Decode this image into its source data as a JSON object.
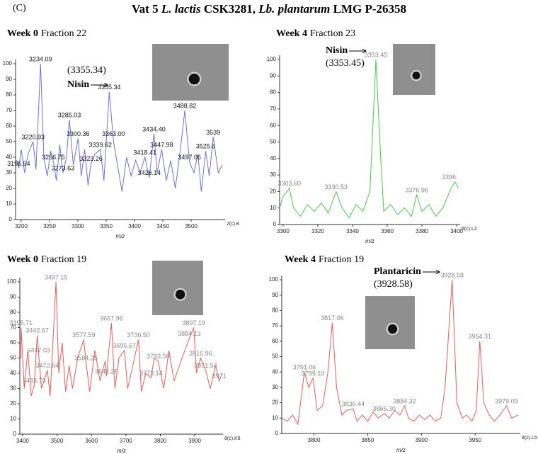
{
  "panel_label": "(C)",
  "title_parts": [
    "Vat 5 ",
    "L. lactis",
    " CSK3281, ",
    "Lb. plantarum",
    "  LMG P-26358"
  ],
  "chart_data": [
    {
      "type": "line",
      "title": "Week 0",
      "subtitle": "Fraction 22",
      "xlabel": "m/z",
      "corner_label": "2(c).K",
      "color": "#7070e0",
      "annotation_color": "#111",
      "xlim": [
        3190,
        3560
      ],
      "xticks": [
        3200,
        3250,
        3300,
        3350,
        3400,
        3450,
        3500
      ],
      "ylim": [
        0,
        100
      ],
      "yticks": [
        0,
        10,
        20,
        30,
        40,
        50,
        60,
        70,
        80,
        90,
        100
      ],
      "x": [
        3192,
        3195.54,
        3200,
        3206,
        3212,
        3220.93,
        3226,
        3234.09,
        3240,
        3246,
        3252,
        3256.75,
        3262,
        3268,
        3273.63,
        3280,
        3285.03,
        3292,
        3300.36,
        3306,
        3312,
        3318,
        3323.26,
        3330,
        3339.62,
        3346,
        3355.34,
        3363.0,
        3370,
        3378,
        3386,
        3394,
        3402,
        3410,
        3418.41,
        3426.14,
        3434.4,
        3440,
        3447.98,
        3456,
        3464,
        3472,
        3480,
        3488.82,
        3497.06,
        3505,
        3512,
        3518,
        3525.6,
        3532,
        3539,
        3548,
        3555
      ],
      "values": [
        38,
        33,
        45,
        30,
        42,
        50,
        32,
        100,
        40,
        28,
        44,
        37,
        25,
        48,
        30,
        40,
        64,
        35,
        52,
        28,
        45,
        22,
        36,
        42,
        45,
        25,
        82,
        50,
        35,
        18,
        40,
        28,
        38,
        30,
        40,
        27,
        55,
        30,
        45,
        25,
        38,
        20,
        42,
        70,
        37,
        30,
        42,
        18,
        44,
        28,
        53,
        30,
        35
      ],
      "annotations": [
        {
          "x": 3195.54,
          "y": 33,
          "label": "3195.54"
        },
        {
          "x": 3220.93,
          "y": 50,
          "label": "3220.93"
        },
        {
          "x": 3234.09,
          "y": 100,
          "label": "3234.09"
        },
        {
          "x": 3256.75,
          "y": 37,
          "label": "3256.75"
        },
        {
          "x": 3273.63,
          "y": 30,
          "label": "3273.63"
        },
        {
          "x": 3285.03,
          "y": 64,
          "label": "3285.03"
        },
        {
          "x": 3300.36,
          "y": 52,
          "label": "3300.36"
        },
        {
          "x": 3323.26,
          "y": 36,
          "label": "3323.26"
        },
        {
          "x": 3339.62,
          "y": 45,
          "label": "3339.62"
        },
        {
          "x": 3355.34,
          "y": 82,
          "label": "3355.34"
        },
        {
          "x": 3363.0,
          "y": 52,
          "label": "3363.00"
        },
        {
          "x": 3418.41,
          "y": 40,
          "label": "3418.41"
        },
        {
          "x": 3426.14,
          "y": 27,
          "label": "3426.14"
        },
        {
          "x": 3434.4,
          "y": 55,
          "label": "3434.40"
        },
        {
          "x": 3447.98,
          "y": 45,
          "label": "3447.98"
        },
        {
          "x": 3488.82,
          "y": 70,
          "label": "3488.82"
        },
        {
          "x": 3497.06,
          "y": 37,
          "label": "3497.06"
        },
        {
          "x": 3525.6,
          "y": 44,
          "label": "3525.6"
        },
        {
          "x": 3539,
          "y": 53,
          "label": "3539"
        }
      ],
      "callout": {
        "name": "Nisin",
        "mass": "(3355.34)"
      }
    },
    {
      "type": "line",
      "title": "Week 4",
      "subtitle": "Fraction 23",
      "xlabel": "m/z",
      "corner_label": "6(c).L2",
      "color": "#44cc44",
      "annotation_color": "#888",
      "xlim": [
        3298,
        3402
      ],
      "xticks": [
        3300,
        3320,
        3340,
        3360,
        3380,
        3400
      ],
      "ylim": [
        0,
        100
      ],
      "yticks": [
        0,
        10,
        20,
        30,
        40,
        50,
        60,
        70,
        80,
        90,
        100
      ],
      "x": [
        3298,
        3300,
        3303.6,
        3306,
        3310,
        3314,
        3318,
        3322,
        3326,
        3330.53,
        3334,
        3338,
        3342,
        3346,
        3350,
        3353.45,
        3356,
        3358,
        3362,
        3366,
        3370,
        3374,
        3376.96,
        3380,
        3384,
        3388,
        3392,
        3396,
        3399,
        3401
      ],
      "values": [
        10,
        17,
        22,
        10,
        5,
        12,
        8,
        13,
        7,
        20,
        10,
        4,
        12,
        8,
        20,
        100,
        45,
        8,
        12,
        6,
        10,
        5,
        18,
        8,
        12,
        5,
        10,
        20,
        26,
        22
      ],
      "annotations": [
        {
          "x": 3303.6,
          "y": 22,
          "label": "3303.60"
        },
        {
          "x": 3330.53,
          "y": 20,
          "label": "3330.53"
        },
        {
          "x": 3353.45,
          "y": 100,
          "label": "3353.45"
        },
        {
          "x": 3376.96,
          "y": 18,
          "label": "3376.96"
        },
        {
          "x": 3396,
          "y": 26,
          "label": "3396."
        }
      ],
      "callout": {
        "name": "Nisin",
        "mass": "(3353.45)"
      }
    },
    {
      "type": "line",
      "title": "Week 0",
      "subtitle": "Fraction 19",
      "xlabel": "m/z",
      "corner_label": "8(c).K6",
      "color": "#ee5a5a",
      "annotation_color": "#888",
      "xlim": [
        3392,
        3982
      ],
      "xticks": [
        3400,
        3500,
        3600,
        3700,
        3800,
        3900
      ],
      "ylim": [
        0,
        100
      ],
      "yticks": [
        0,
        10,
        20,
        30,
        40,
        50,
        60,
        70,
        80,
        90,
        100
      ],
      "x": [
        3395,
        3395.71,
        3405,
        3415,
        3425,
        3433.73,
        3442.67,
        3447.03,
        3455,
        3472.04,
        3480,
        3497.15,
        3505,
        3515,
        3525,
        3535,
        3545,
        3560,
        3577.59,
        3584.25,
        3595,
        3610,
        3625,
        3640,
        3643.26,
        3657.96,
        3668,
        3680,
        3695.67,
        3705,
        3720,
        3736.5,
        3745,
        3758,
        3773.14,
        3782,
        3793.56,
        3810,
        3825,
        3840,
        3860,
        3884.13,
        3897.19,
        3905,
        3916.96,
        3931.54,
        3945,
        3960,
        3971,
        3980
      ],
      "values": [
        50,
        70,
        30,
        55,
        25,
        32,
        65,
        52,
        30,
        42,
        25,
        100,
        40,
        60,
        28,
        45,
        30,
        50,
        62,
        47,
        28,
        55,
        35,
        48,
        38,
        73,
        30,
        50,
        55,
        30,
        45,
        62,
        28,
        40,
        37,
        50,
        48,
        30,
        55,
        35,
        48,
        63,
        70,
        40,
        50,
        42,
        30,
        45,
        35,
        40
      ],
      "annotations": [
        {
          "x": 3395.71,
          "y": 70,
          "label": "3395.71"
        },
        {
          "x": 3433.73,
          "y": 32,
          "label": "3433.73"
        },
        {
          "x": 3442.67,
          "y": 65,
          "label": "3442.67"
        },
        {
          "x": 3447.03,
          "y": 52,
          "label": "3447.03"
        },
        {
          "x": 3472.04,
          "y": 42,
          "label": "3472.04"
        },
        {
          "x": 3497.15,
          "y": 100,
          "label": "3497.15"
        },
        {
          "x": 3577.59,
          "y": 62,
          "label": "3577.59"
        },
        {
          "x": 3584.25,
          "y": 47,
          "label": "3584.25"
        },
        {
          "x": 3643.26,
          "y": 38,
          "label": "3643.26"
        },
        {
          "x": 3657.96,
          "y": 73,
          "label": "3657.96"
        },
        {
          "x": 3695.67,
          "y": 55,
          "label": "3695.67"
        },
        {
          "x": 3736.5,
          "y": 62,
          "label": "3736.50"
        },
        {
          "x": 3773.14,
          "y": 37,
          "label": "3773.14"
        },
        {
          "x": 3793.56,
          "y": 48,
          "label": "3793.56"
        },
        {
          "x": 3884.13,
          "y": 63,
          "label": "3884.13"
        },
        {
          "x": 3897.19,
          "y": 70,
          "label": "3897.19"
        },
        {
          "x": 3916.96,
          "y": 50,
          "label": "3916.96"
        },
        {
          "x": 3931.54,
          "y": 42,
          "label": "3931.54"
        },
        {
          "x": 3971,
          "y": 35,
          "label": "3971"
        }
      ]
    },
    {
      "type": "line",
      "title": "Week 4",
      "subtitle": "Fraction 19",
      "xlabel": "m/z",
      "corner_label": "8(c).L5",
      "color": "#ee5a5a",
      "annotation_color": "#888",
      "xlim": [
        3770,
        3992
      ],
      "xticks": [
        3800,
        3850,
        3900,
        3950
      ],
      "ylim": [
        0,
        100
      ],
      "yticks": [
        0,
        10,
        20,
        30,
        40,
        50,
        60,
        70,
        80,
        90,
        100
      ],
      "x": [
        3770,
        3775,
        3780,
        3785,
        3791.06,
        3795,
        3799.1,
        3803,
        3808,
        3813,
        3817.06,
        3821,
        3826,
        3830,
        3836.44,
        3840,
        3845,
        3850,
        3855,
        3860,
        3865.3,
        3870,
        3875,
        3880,
        3884.32,
        3888,
        3893,
        3898,
        3903,
        3908,
        3913,
        3918,
        3922,
        3928.58,
        3933,
        3938,
        3942,
        3947,
        3951,
        3954.31,
        3958,
        3963,
        3968,
        3973,
        3979.09,
        3984,
        3990
      ],
      "values": [
        10,
        8,
        12,
        6,
        40,
        30,
        36,
        15,
        18,
        40,
        72,
        30,
        12,
        15,
        16,
        8,
        12,
        8,
        14,
        10,
        13,
        10,
        15,
        12,
        18,
        10,
        8,
        12,
        9,
        12,
        8,
        10,
        30,
        100,
        20,
        10,
        12,
        8,
        15,
        60,
        20,
        12,
        8,
        12,
        18,
        10,
        12
      ],
      "annotations": [
        {
          "x": 3791.06,
          "y": 40,
          "label": "3791.06"
        },
        {
          "x": 3799.1,
          "y": 36,
          "label": "3799.10"
        },
        {
          "x": 3817.06,
          "y": 72,
          "label": "3817.06"
        },
        {
          "x": 3836.44,
          "y": 16,
          "label": "3836.44"
        },
        {
          "x": 3865.3,
          "y": 13,
          "label": "3865.30"
        },
        {
          "x": 3884.32,
          "y": 18,
          "label": "3884.32"
        },
        {
          "x": 3928.58,
          "y": 100,
          "label": "3928.58"
        },
        {
          "x": 3954.31,
          "y": 60,
          "label": "3954.31"
        },
        {
          "x": 3979.09,
          "y": 18,
          "label": "3979.09"
        }
      ],
      "callout": {
        "name": "Plantaricin",
        "mass": "(3928.58)"
      }
    }
  ]
}
